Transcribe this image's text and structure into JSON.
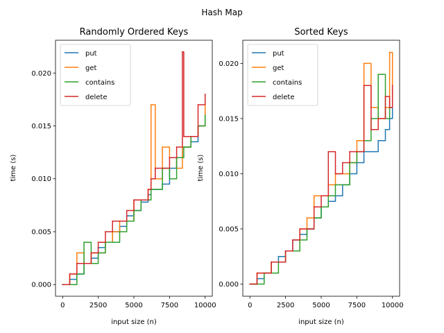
{
  "figure": {
    "suptitle": "Hash Map"
  },
  "colors": {
    "put": "#1f77b4",
    "get": "#ff7f0e",
    "contains": "#2ca02c",
    "delete": "#d62728"
  },
  "chart_data": [
    {
      "type": "line",
      "title": "Randomly Ordered Keys",
      "xlabel": "input size (n)",
      "ylabel": "time (s)",
      "xlim": [
        -500,
        10500
      ],
      "ylim": [
        -0.0011,
        0.0231
      ],
      "xticks": [
        0,
        2500,
        5000,
        7500,
        10000
      ],
      "xtick_labels": [
        "0",
        "2500",
        "5000",
        "7500",
        "10000"
      ],
      "yticks": [
        0.0,
        0.005,
        0.01,
        0.015,
        0.02
      ],
      "ytick_labels": [
        "0.000",
        "0.005",
        "0.010",
        "0.015",
        "0.020"
      ],
      "grid": false,
      "legend": "top-left",
      "x": [
        0,
        500,
        1000,
        1500,
        2000,
        2500,
        3000,
        3500,
        4000,
        4500,
        5000,
        5500,
        6000,
        6200,
        6500,
        7000,
        7500,
        8000,
        8400,
        8500,
        9000,
        9500,
        10000
      ],
      "series": [
        {
          "name": "put",
          "color_key": "put",
          "values": [
            0.0,
            0.0005,
            0.001,
            0.002,
            0.0025,
            0.0035,
            0.004,
            0.005,
            0.0055,
            0.0065,
            0.007,
            0.0078,
            0.0085,
            0.009,
            0.009,
            0.0095,
            0.011,
            0.012,
            0.013,
            0.013,
            0.0135,
            0.015,
            0.016
          ]
        },
        {
          "name": "get",
          "color_key": "get",
          "values": [
            0.0,
            0.001,
            0.003,
            0.002,
            0.003,
            0.003,
            0.004,
            0.005,
            0.006,
            0.006,
            0.008,
            0.008,
            0.009,
            0.017,
            0.01,
            0.013,
            0.012,
            0.011,
            0.013,
            0.013,
            0.014,
            0.015,
            0.017
          ]
        },
        {
          "name": "contains",
          "color_key": "contains",
          "values": [
            0.0,
            0.0,
            0.001,
            0.004,
            0.002,
            0.003,
            0.004,
            0.004,
            0.005,
            0.006,
            0.007,
            0.008,
            0.008,
            0.009,
            0.009,
            0.011,
            0.01,
            0.012,
            0.012,
            0.013,
            0.014,
            0.015,
            0.016
          ]
        },
        {
          "name": "delete",
          "color_key": "delete",
          "values": [
            0.0,
            0.001,
            0.002,
            0.002,
            0.003,
            0.004,
            0.005,
            0.006,
            0.006,
            0.007,
            0.008,
            0.008,
            0.009,
            0.01,
            0.011,
            0.011,
            0.012,
            0.013,
            0.022,
            0.014,
            0.014,
            0.017,
            0.018
          ]
        }
      ]
    },
    {
      "type": "line",
      "title": "Sorted Keys",
      "xlabel": "input size (n)",
      "ylabel": "time (s)",
      "xlim": [
        -500,
        10500
      ],
      "ylim": [
        -0.0011,
        0.0221
      ],
      "xticks": [
        0,
        2500,
        5000,
        7500,
        10000
      ],
      "xtick_labels": [
        "0",
        "2500",
        "5000",
        "7500",
        "10000"
      ],
      "yticks": [
        0.0,
        0.005,
        0.01,
        0.015,
        0.02
      ],
      "ytick_labels": [
        "0.000",
        "0.005",
        "0.010",
        "0.015",
        "0.020"
      ],
      "grid": false,
      "legend": "top-left",
      "x": [
        0,
        500,
        1000,
        1500,
        2000,
        2500,
        3000,
        3500,
        4000,
        4500,
        5000,
        5500,
        6000,
        6500,
        7000,
        7500,
        8000,
        8500,
        9000,
        9500,
        9800,
        10000
      ],
      "series": [
        {
          "name": "put",
          "color_key": "put",
          "values": [
            0.0,
            0.0005,
            0.001,
            0.002,
            0.0025,
            0.003,
            0.004,
            0.0045,
            0.005,
            0.006,
            0.007,
            0.0075,
            0.008,
            0.009,
            0.01,
            0.011,
            0.012,
            0.012,
            0.013,
            0.014,
            0.015,
            0.016
          ]
        },
        {
          "name": "get",
          "color_key": "get",
          "values": [
            0.0,
            0.001,
            0.001,
            0.002,
            0.002,
            0.003,
            0.003,
            0.005,
            0.006,
            0.008,
            0.008,
            0.009,
            0.01,
            0.01,
            0.011,
            0.013,
            0.02,
            0.016,
            0.015,
            0.016,
            0.021,
            0.017
          ]
        },
        {
          "name": "contains",
          "color_key": "contains",
          "values": [
            0.0,
            0.0,
            0.001,
            0.001,
            0.002,
            0.003,
            0.003,
            0.004,
            0.005,
            0.006,
            0.007,
            0.008,
            0.009,
            0.009,
            0.011,
            0.012,
            0.013,
            0.015,
            0.019,
            0.015,
            0.016,
            0.016
          ]
        },
        {
          "name": "delete",
          "color_key": "delete",
          "values": [
            0.0,
            0.001,
            0.001,
            0.002,
            0.002,
            0.003,
            0.004,
            0.005,
            0.005,
            0.007,
            0.008,
            0.012,
            0.01,
            0.011,
            0.012,
            0.012,
            0.018,
            0.014,
            0.015,
            0.017,
            0.016,
            0.018
          ]
        }
      ]
    }
  ]
}
